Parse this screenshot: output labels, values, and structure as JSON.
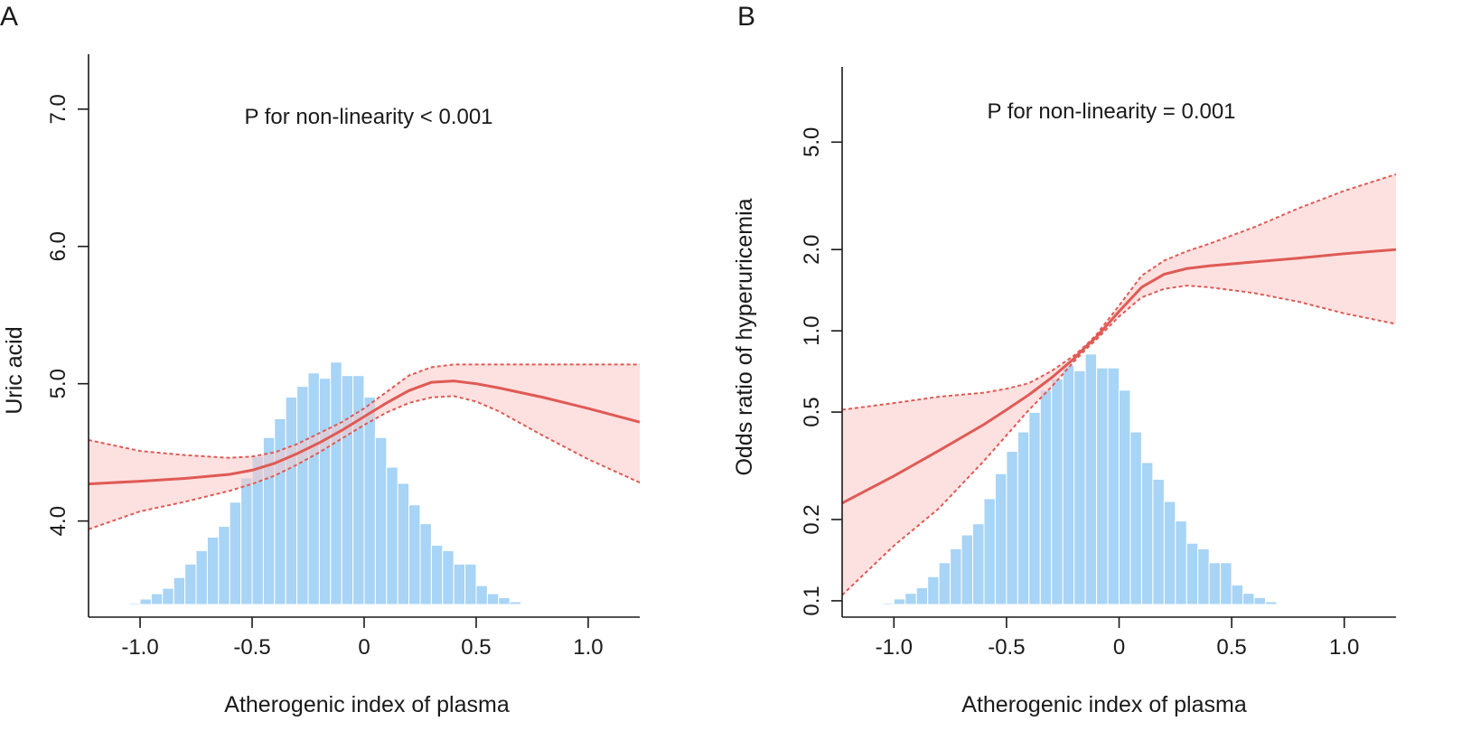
{
  "chart_data": [
    {
      "panel": "A",
      "type": "line",
      "scale": "linear",
      "title": "",
      "annotation": "P for non-linearity < 0.001",
      "xlabel": "Atherogenic index of plasma",
      "ylabel": "Uric acid",
      "xlim": [
        -1.23,
        1.23
      ],
      "ylim": [
        3.3,
        7.4
      ],
      "xticks": [
        -1.0,
        -0.5,
        0,
        0.5,
        1.0
      ],
      "xtick_labels": [
        "-1.0",
        "-0.5",
        "0",
        "0.5",
        "1.0"
      ],
      "yticks": [
        4.0,
        5.0,
        6.0,
        7.0
      ],
      "ytick_labels": [
        "4.0",
        "5.0",
        "6.0",
        "7.0"
      ],
      "series": [
        {
          "name": "fit",
          "x": [
            -1.23,
            -1.0,
            -0.8,
            -0.6,
            -0.5,
            -0.4,
            -0.3,
            -0.2,
            -0.1,
            0.0,
            0.1,
            0.2,
            0.3,
            0.4,
            0.5,
            0.6,
            0.8,
            1.0,
            1.23
          ],
          "y": [
            4.27,
            4.29,
            4.31,
            4.34,
            4.37,
            4.42,
            4.49,
            4.57,
            4.66,
            4.76,
            4.86,
            4.95,
            5.01,
            5.02,
            5.0,
            4.97,
            4.9,
            4.82,
            4.72
          ]
        },
        {
          "name": "upper 95% CI",
          "x": [
            -1.23,
            -1.0,
            -0.8,
            -0.6,
            -0.5,
            -0.4,
            -0.3,
            -0.2,
            -0.1,
            0.0,
            0.1,
            0.2,
            0.3,
            0.4,
            0.5,
            0.6,
            0.8,
            1.0,
            1.23
          ],
          "y": [
            4.59,
            4.51,
            4.48,
            4.46,
            4.47,
            4.5,
            4.56,
            4.64,
            4.72,
            4.82,
            4.94,
            5.06,
            5.12,
            5.14,
            5.14,
            5.14,
            5.14,
            5.14,
            5.14
          ]
        },
        {
          "name": "lower 95% CI",
          "x": [
            -1.23,
            -1.0,
            -0.8,
            -0.6,
            -0.5,
            -0.4,
            -0.3,
            -0.2,
            -0.1,
            0.0,
            0.1,
            0.2,
            0.3,
            0.4,
            0.5,
            0.6,
            0.8,
            1.0,
            1.23
          ],
          "y": [
            3.94,
            4.07,
            4.14,
            4.22,
            4.27,
            4.33,
            4.41,
            4.5,
            4.6,
            4.7,
            4.79,
            4.86,
            4.9,
            4.91,
            4.87,
            4.8,
            4.62,
            4.45,
            4.28
          ]
        }
      ],
      "histogram": {
        "bin_start": -1.15,
        "bin_width": 0.05,
        "heights": [
          0.002,
          0.003,
          0.005,
          0.02,
          0.04,
          0.06,
          0.1,
          0.15,
          0.2,
          0.25,
          0.29,
          0.38,
          0.47,
          0.55,
          0.62,
          0.69,
          0.77,
          0.81,
          0.86,
          0.84,
          0.9,
          0.85,
          0.85,
          0.77,
          0.62,
          0.51,
          0.45,
          0.37,
          0.3,
          0.22,
          0.2,
          0.15,
          0.15,
          0.07,
          0.04,
          0.025,
          0.01
        ]
      }
    },
    {
      "panel": "B",
      "type": "line",
      "scale": "log",
      "title": "",
      "annotation": "P for non-linearity = 0.001",
      "xlabel": "Atherogenic index of plasma",
      "ylabel": "Odds ratio of hyperuricemia",
      "xlim": [
        -1.23,
        1.23
      ],
      "ylim": [
        0.087,
        9.5
      ],
      "xticks": [
        -1.0,
        -0.5,
        0,
        0.5,
        1.0
      ],
      "xtick_labels": [
        "-1.0",
        "-0.5",
        "0",
        "0.5",
        "1.0"
      ],
      "yticks": [
        0.1,
        0.2,
        0.5,
        1.0,
        2.0,
        5.0
      ],
      "ytick_labels": [
        "0.1",
        "0.2",
        "0.5",
        "1.0",
        "2.0",
        "5.0"
      ],
      "series": [
        {
          "name": "fit",
          "x": [
            -1.23,
            -1.0,
            -0.8,
            -0.6,
            -0.5,
            -0.4,
            -0.3,
            -0.2,
            -0.15,
            -0.1,
            0.0,
            0.1,
            0.2,
            0.3,
            0.4,
            0.6,
            0.8,
            1.0,
            1.23
          ],
          "y": [
            0.23,
            0.29,
            0.36,
            0.45,
            0.51,
            0.58,
            0.67,
            0.79,
            0.87,
            0.95,
            1.18,
            1.45,
            1.62,
            1.7,
            1.74,
            1.8,
            1.86,
            1.93,
            2.0
          ]
        },
        {
          "name": "upper 95% CI",
          "x": [
            -1.23,
            -1.0,
            -0.8,
            -0.6,
            -0.5,
            -0.4,
            -0.3,
            -0.2,
            -0.15,
            -0.1,
            0.0,
            0.1,
            0.2,
            0.3,
            0.4,
            0.6,
            0.8,
            1.0,
            1.23
          ],
          "y": [
            0.51,
            0.54,
            0.57,
            0.59,
            0.61,
            0.64,
            0.71,
            0.81,
            0.88,
            0.97,
            1.24,
            1.6,
            1.82,
            1.97,
            2.1,
            2.42,
            2.85,
            3.3,
            3.8
          ]
        },
        {
          "name": "lower 95% CI",
          "x": [
            -1.23,
            -1.0,
            -0.8,
            -0.6,
            -0.5,
            -0.4,
            -0.3,
            -0.2,
            -0.15,
            -0.1,
            0.0,
            0.1,
            0.2,
            0.3,
            0.4,
            0.6,
            0.8,
            1.0,
            1.23
          ],
          "y": [
            0.105,
            0.16,
            0.22,
            0.33,
            0.41,
            0.51,
            0.62,
            0.77,
            0.85,
            0.93,
            1.13,
            1.33,
            1.43,
            1.47,
            1.45,
            1.38,
            1.28,
            1.16,
            1.06
          ]
        }
      ],
      "histogram": {
        "bin_start": -1.15,
        "bin_width": 0.05,
        "heights": [
          0.002,
          0.003,
          0.005,
          0.02,
          0.04,
          0.06,
          0.1,
          0.15,
          0.2,
          0.25,
          0.29,
          0.38,
          0.47,
          0.55,
          0.62,
          0.69,
          0.77,
          0.81,
          0.86,
          0.84,
          0.9,
          0.85,
          0.85,
          0.77,
          0.62,
          0.51,
          0.45,
          0.37,
          0.3,
          0.22,
          0.2,
          0.15,
          0.15,
          0.07,
          0.04,
          0.025,
          0.01
        ]
      }
    }
  ]
}
